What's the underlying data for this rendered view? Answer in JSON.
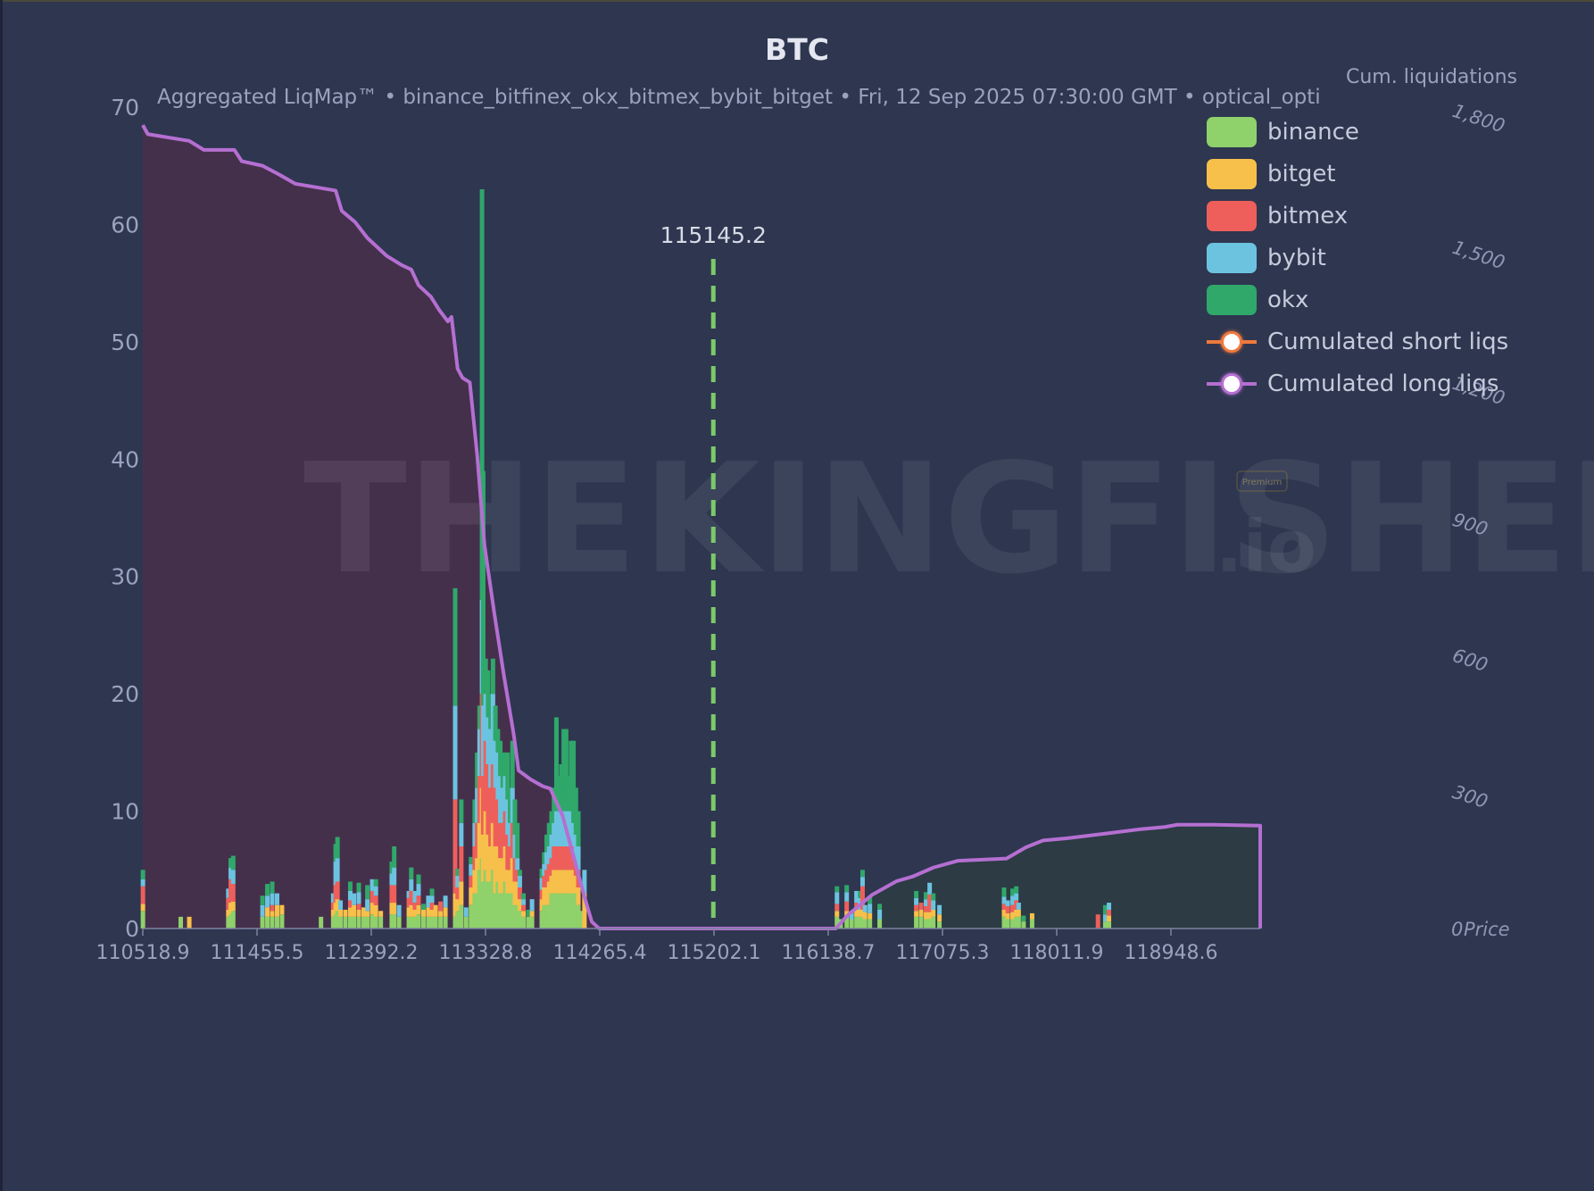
{
  "header": {
    "title": "BTC",
    "subtitle": "Aggregated LiqMap™  •  binance_bitfinex_okx_bitmex_bybit_bitget  •  Fri, 12 Sep 2025 07:30:00 GMT  •  optical_opti",
    "right_axis_title": "Cum. liquidations",
    "watermark": "THE KINGFISHER.io",
    "watermark_badge": "Premium"
  },
  "colors": {
    "background": "#2e3650",
    "binance": "#8fd16a",
    "bitget": "#f7c04a",
    "bitmex": "#ee5f5b",
    "bybit": "#6cc3e0",
    "okx": "#2fa86a",
    "short_line": "#f07a3c",
    "long_line": "#b56fd1",
    "long_fill": "#45304c",
    "short_fill": "#2c3b44",
    "current_price_line": "#7cc96a"
  },
  "legend": {
    "items": [
      {
        "label": "binance",
        "type": "box",
        "color": "#8fd16a"
      },
      {
        "label": "bitget",
        "type": "box",
        "color": "#f7c04a"
      },
      {
        "label": "bitmex",
        "type": "box",
        "color": "#ee5f5b"
      },
      {
        "label": "bybit",
        "type": "box",
        "color": "#6cc3e0"
      },
      {
        "label": "okx",
        "type": "box",
        "color": "#2fa86a"
      },
      {
        "label": "Cumulated short liqs",
        "type": "line",
        "color": "#f07a3c"
      },
      {
        "label": "Cumulated long liqs",
        "type": "line",
        "color": "#b56fd1"
      }
    ]
  },
  "chart_data": {
    "type": "bar",
    "title": "BTC",
    "subtitle": "Aggregated LiqMap™ • binance_bitfinex_okx_bitmex_bybit_bitget • Fri, 12 Sep 2025 07:30:00 GMT • optical_opti",
    "xlabel": "Price",
    "ylabel": "",
    "y2label": "Cum. liquidations",
    "stacked": true,
    "xlim": [
      110518.9,
      119700
    ],
    "ylim": [
      0,
      70
    ],
    "y2lim": [
      0,
      1800
    ],
    "x_ticks": [
      "110518.9",
      "111455.5",
      "112392.2",
      "113328.8",
      "114265.4",
      "115202.1",
      "116138.7",
      "117075.3",
      "118011.9",
      "118948.6"
    ],
    "y_ticks": [
      0,
      10,
      20,
      30,
      40,
      50,
      60,
      70
    ],
    "y2_ticks": [
      0,
      300,
      600,
      900,
      1200,
      1500,
      1800
    ],
    "current_price": 115145.2,
    "current_price_label": "115145.2",
    "legend_position": "upper right",
    "grid": false,
    "series_names": [
      "binance",
      "bitget",
      "bitmex",
      "bybit",
      "okx"
    ],
    "bars": [
      {
        "x": 110520,
        "v": [
          1.5,
          0.6,
          1.5,
          0.6,
          0.8
        ]
      },
      {
        "x": 110830,
        "v": [
          1,
          0,
          0,
          0,
          0
        ]
      },
      {
        "x": 110900,
        "v": [
          0,
          1,
          0,
          0,
          0
        ]
      },
      {
        "x": 111220,
        "v": [
          1,
          0.6,
          1,
          0.8,
          0
        ]
      },
      {
        "x": 111240,
        "v": [
          1.2,
          1,
          2,
          1,
          0.8
        ]
      },
      {
        "x": 111260,
        "v": [
          1.5,
          0.8,
          1.5,
          1.2,
          1.2
        ]
      },
      {
        "x": 111500,
        "v": [
          1,
          0,
          0,
          1,
          0.8
        ]
      },
      {
        "x": 111540,
        "v": [
          1,
          0.8,
          0,
          1,
          1
        ]
      },
      {
        "x": 111580,
        "v": [
          1,
          0.5,
          0.5,
          1,
          1
        ]
      },
      {
        "x": 111620,
        "v": [
          1,
          1,
          0,
          1,
          0
        ]
      },
      {
        "x": 111660,
        "v": [
          1.2,
          0.8,
          0,
          0,
          0
        ]
      },
      {
        "x": 111980,
        "v": [
          1,
          0,
          0,
          0,
          0
        ]
      },
      {
        "x": 112080,
        "v": [
          1,
          0.6,
          0.6,
          0.8,
          0
        ]
      },
      {
        "x": 112100,
        "v": [
          1.2,
          1,
          1.5,
          2,
          1.5
        ]
      },
      {
        "x": 112115,
        "v": [
          1.5,
          1,
          1.5,
          2,
          1.8
        ]
      },
      {
        "x": 112140,
        "v": [
          1,
          0.6,
          0,
          0.8,
          0
        ]
      },
      {
        "x": 112180,
        "v": [
          1,
          0.6,
          0,
          0,
          0
        ]
      },
      {
        "x": 112220,
        "v": [
          1,
          0.8,
          0.6,
          0.8,
          0.8
        ]
      },
      {
        "x": 112250,
        "v": [
          1,
          1,
          0,
          1,
          0
        ]
      },
      {
        "x": 112290,
        "v": [
          1,
          0.6,
          0.5,
          1,
          0.8
        ]
      },
      {
        "x": 112330,
        "v": [
          1,
          0.8,
          0,
          0,
          0
        ]
      },
      {
        "x": 112360,
        "v": [
          1,
          0.5,
          0,
          1,
          1.2
        ]
      },
      {
        "x": 112400,
        "v": [
          1.2,
          1,
          1,
          1,
          0
        ]
      },
      {
        "x": 112430,
        "v": [
          1,
          1,
          0.8,
          0.8,
          0.6
        ]
      },
      {
        "x": 112470,
        "v": [
          1,
          0.5,
          0,
          0,
          0
        ]
      },
      {
        "x": 112560,
        "v": [
          1.2,
          1,
          1.5,
          1,
          1
        ]
      },
      {
        "x": 112580,
        "v": [
          1.2,
          1,
          1.5,
          1.5,
          1.8
        ]
      },
      {
        "x": 112620,
        "v": [
          1,
          0,
          0,
          1,
          0
        ]
      },
      {
        "x": 112700,
        "v": [
          1,
          0.8,
          0.8,
          0.6,
          0
        ]
      },
      {
        "x": 112720,
        "v": [
          1,
          1,
          1.2,
          1,
          1
        ]
      },
      {
        "x": 112750,
        "v": [
          1,
          0.6,
          0.6,
          1,
          0
        ]
      },
      {
        "x": 112780,
        "v": [
          1.2,
          0.8,
          0.8,
          1,
          0.8
        ]
      },
      {
        "x": 112820,
        "v": [
          1,
          0.6,
          0,
          0,
          0.5
        ]
      },
      {
        "x": 112860,
        "v": [
          1,
          0.8,
          0,
          1,
          0
        ]
      },
      {
        "x": 112890,
        "v": [
          1,
          0.6,
          0.6,
          0.6,
          0.6
        ]
      },
      {
        "x": 112920,
        "v": [
          1,
          1,
          0,
          0,
          0
        ]
      },
      {
        "x": 112960,
        "v": [
          1,
          0.5,
          0.8,
          0,
          0
        ]
      },
      {
        "x": 113000,
        "v": [
          1,
          0.8,
          0,
          1,
          0
        ]
      },
      {
        "x": 113080,
        "v": [
          1,
          2,
          8,
          8,
          10
        ]
      },
      {
        "x": 113100,
        "v": [
          1.5,
          1,
          1,
          1,
          0.6
        ]
      },
      {
        "x": 113130,
        "v": [
          2,
          2,
          3,
          2,
          2
        ]
      },
      {
        "x": 113170,
        "v": [
          1,
          0,
          0,
          0.8,
          0
        ]
      },
      {
        "x": 113210,
        "v": [
          2,
          1.5,
          1,
          1,
          0.6
        ]
      },
      {
        "x": 113240,
        "v": [
          3,
          2,
          2,
          2,
          2
        ]
      },
      {
        "x": 113260,
        "v": [
          3,
          3,
          3,
          3,
          3
        ]
      },
      {
        "x": 113280,
        "v": [
          5,
          4,
          4,
          4,
          2
        ]
      },
      {
        "x": 113300,
        "v": [
          6,
          6,
          8,
          8,
          35
        ]
      },
      {
        "x": 113310,
        "v": [
          4,
          4,
          5,
          6,
          20
        ]
      },
      {
        "x": 113330,
        "v": [
          5,
          5,
          6,
          4,
          3
        ]
      },
      {
        "x": 113350,
        "v": [
          4,
          4,
          6,
          4,
          4
        ]
      },
      {
        "x": 113370,
        "v": [
          4,
          3,
          5,
          5,
          3
        ]
      },
      {
        "x": 113390,
        "v": [
          5,
          4,
          5,
          6,
          3
        ]
      },
      {
        "x": 113410,
        "v": [
          3,
          4,
          5,
          4,
          3
        ]
      },
      {
        "x": 113430,
        "v": [
          4,
          3,
          4,
          4,
          2
        ]
      },
      {
        "x": 113450,
        "v": [
          3,
          3,
          3,
          4,
          3
        ]
      },
      {
        "x": 113470,
        "v": [
          3,
          3,
          3,
          3,
          3
        ]
      },
      {
        "x": 113490,
        "v": [
          4,
          3,
          3,
          3,
          2
        ]
      },
      {
        "x": 113510,
        "v": [
          3,
          2,
          3,
          3,
          4
        ]
      },
      {
        "x": 113530,
        "v": [
          3,
          2,
          2,
          2,
          3
        ]
      },
      {
        "x": 113550,
        "v": [
          3,
          3,
          3,
          3,
          4
        ]
      },
      {
        "x": 113570,
        "v": [
          2,
          2,
          2,
          2,
          3
        ]
      },
      {
        "x": 113590,
        "v": [
          2,
          2,
          1,
          1,
          3
        ]
      },
      {
        "x": 113610,
        "v": [
          1.5,
          1,
          1,
          1,
          0.5
        ]
      },
      {
        "x": 113640,
        "v": [
          1,
          0.5,
          0.5,
          0.5,
          0.5
        ]
      },
      {
        "x": 113680,
        "v": [
          1,
          0,
          0,
          0,
          0.6
        ]
      },
      {
        "x": 113710,
        "v": [
          1,
          0.5,
          0,
          1,
          0
        ]
      },
      {
        "x": 113790,
        "v": [
          1.5,
          1,
          0.8,
          1,
          0.8
        ]
      },
      {
        "x": 113810,
        "v": [
          2,
          1.5,
          1,
          1,
          1
        ]
      },
      {
        "x": 113830,
        "v": [
          2,
          1.5,
          1.5,
          1.5,
          1.5
        ]
      },
      {
        "x": 113850,
        "v": [
          2,
          2,
          1.5,
          1.5,
          2
        ]
      },
      {
        "x": 113870,
        "v": [
          3,
          1.5,
          1.5,
          2,
          2
        ]
      },
      {
        "x": 113890,
        "v": [
          3,
          2,
          2,
          2,
          3
        ]
      },
      {
        "x": 113910,
        "v": [
          3,
          2,
          2,
          3,
          8
        ]
      },
      {
        "x": 113930,
        "v": [
          3,
          2,
          2,
          3,
          3
        ]
      },
      {
        "x": 113950,
        "v": [
          3,
          2,
          2,
          3,
          4
        ]
      },
      {
        "x": 113970,
        "v": [
          3,
          2,
          2,
          3,
          7
        ]
      },
      {
        "x": 113990,
        "v": [
          3,
          2,
          2,
          3,
          7
        ]
      },
      {
        "x": 114010,
        "v": [
          3,
          2,
          2,
          3,
          3
        ]
      },
      {
        "x": 114030,
        "v": [
          3,
          2,
          2,
          3,
          6
        ]
      },
      {
        "x": 114050,
        "v": [
          3,
          2,
          2,
          2,
          7
        ]
      },
      {
        "x": 114070,
        "v": [
          3,
          1.5,
          1.5,
          2,
          4
        ]
      },
      {
        "x": 114090,
        "v": [
          2,
          1.5,
          1.5,
          2,
          3
        ]
      },
      {
        "x": 114110,
        "v": [
          1.5,
          0,
          0,
          0,
          0
        ]
      },
      {
        "x": 114140,
        "v": [
          0,
          3,
          0,
          2,
          0
        ]
      }
    ],
    "bars_right": [
      {
        "x": 116210,
        "v": [
          1,
          0.5,
          0.6,
          1,
          0.5
        ]
      },
      {
        "x": 116240,
        "v": [
          0.8,
          0,
          0,
          0,
          0
        ]
      },
      {
        "x": 116290,
        "v": [
          1,
          0.5,
          0.8,
          0.8,
          0.6
        ]
      },
      {
        "x": 116330,
        "v": [
          0.8,
          0,
          0,
          0.6,
          0
        ]
      },
      {
        "x": 116370,
        "v": [
          1,
          0.6,
          0.6,
          1,
          0
        ]
      },
      {
        "x": 116400,
        "v": [
          1,
          0.6,
          0,
          1,
          0.6
        ]
      },
      {
        "x": 116420,
        "v": [
          1,
          0.6,
          2,
          0.8,
          0.6
        ]
      },
      {
        "x": 116440,
        "v": [
          0.8,
          0.6,
          0,
          0.6,
          0
        ]
      },
      {
        "x": 116480,
        "v": [
          0.8,
          0.5,
          0,
          0.8,
          0.6
        ]
      },
      {
        "x": 116560,
        "v": [
          0.8,
          0,
          0,
          0.8,
          0.5
        ]
      },
      {
        "x": 116860,
        "v": [
          1,
          0.5,
          0.5,
          0.6,
          0.6
        ]
      },
      {
        "x": 116900,
        "v": [
          1,
          0.6,
          0.6,
          0,
          0
        ]
      },
      {
        "x": 116940,
        "v": [
          0.8,
          0.6,
          0.5,
          0.6,
          0.6
        ]
      },
      {
        "x": 116970,
        "v": [
          0.8,
          0.6,
          1.5,
          1,
          0
        ]
      },
      {
        "x": 117000,
        "v": [
          1,
          0.6,
          0,
          0.8,
          0.6
        ]
      },
      {
        "x": 117050,
        "v": [
          0.6,
          0.6,
          0,
          0.8,
          0
        ]
      },
      {
        "x": 117580,
        "v": [
          1,
          0.6,
          0.5,
          0.6,
          0.8
        ]
      },
      {
        "x": 117610,
        "v": [
          0.8,
          0.5,
          0.6,
          0.5,
          0
        ]
      },
      {
        "x": 117650,
        "v": [
          0.8,
          0.6,
          0.6,
          0.8,
          0.6
        ]
      },
      {
        "x": 117680,
        "v": [
          1,
          0.6,
          0.8,
          0.6,
          0.6
        ]
      },
      {
        "x": 117700,
        "v": [
          1,
          0.6,
          0,
          0.6,
          0
        ]
      },
      {
        "x": 117740,
        "v": [
          0.6,
          0,
          0,
          0,
          0.5
        ]
      },
      {
        "x": 117810,
        "v": [
          0.8,
          0.5,
          0,
          0,
          0
        ]
      },
      {
        "x": 118350,
        "v": [
          0,
          0,
          1.2,
          0,
          0
        ]
      },
      {
        "x": 118410,
        "v": [
          0.6,
          0,
          0,
          0.6,
          0.8
        ]
      },
      {
        "x": 118440,
        "v": [
          0.6,
          0.5,
          0.5,
          0.6,
          0
        ]
      }
    ],
    "cum_long_liqs": [
      [
        110518.9,
        1780
      ],
      [
        110560,
        1760
      ],
      [
        110900,
        1745
      ],
      [
        111020,
        1725
      ],
      [
        111270,
        1725
      ],
      [
        111330,
        1700
      ],
      [
        111500,
        1690
      ],
      [
        111640,
        1670
      ],
      [
        111770,
        1650
      ],
      [
        112100,
        1635
      ],
      [
        112150,
        1590
      ],
      [
        112260,
        1565
      ],
      [
        112360,
        1530
      ],
      [
        112520,
        1490
      ],
      [
        112640,
        1470
      ],
      [
        112720,
        1460
      ],
      [
        112780,
        1425
      ],
      [
        112880,
        1400
      ],
      [
        112950,
        1370
      ],
      [
        113020,
        1345
      ],
      [
        113050,
        1355
      ],
      [
        113100,
        1240
      ],
      [
        113140,
        1220
      ],
      [
        113200,
        1210
      ],
      [
        113260,
        1050
      ],
      [
        113320,
        850
      ],
      [
        113400,
        700
      ],
      [
        113480,
        560
      ],
      [
        113560,
        430
      ],
      [
        113600,
        350
      ],
      [
        113700,
        330
      ],
      [
        113800,
        315
      ],
      [
        113860,
        310
      ],
      [
        113960,
        250
      ],
      [
        114060,
        150
      ],
      [
        114140,
        70
      ],
      [
        114200,
        15
      ],
      [
        114260,
        0
      ],
      [
        115202.1,
        0
      ]
    ],
    "cum_short_liqs": [
      [
        115202.1,
        0
      ],
      [
        116200,
        0
      ],
      [
        116300,
        30
      ],
      [
        116500,
        75
      ],
      [
        116700,
        105
      ],
      [
        116830,
        115
      ],
      [
        117000,
        135
      ],
      [
        117200,
        150
      ],
      [
        117600,
        155
      ],
      [
        117760,
        180
      ],
      [
        117900,
        195
      ],
      [
        118100,
        200
      ],
      [
        118400,
        210
      ],
      [
        118700,
        220
      ],
      [
        118900,
        225
      ],
      [
        119000,
        230
      ],
      [
        119300,
        230
      ],
      [
        119700,
        228
      ]
    ],
    "cum_short_liqs_note": "rendered in purple in the image (long-line color) on the right side",
    "annotations": [
      {
        "text": "115145.2",
        "x": 115145.2,
        "type": "vertical dashed line"
      }
    ]
  }
}
